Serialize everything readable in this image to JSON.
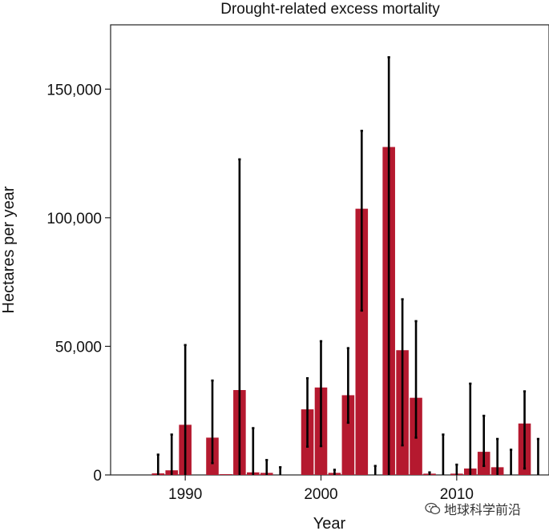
{
  "chart_data": {
    "type": "bar",
    "title": "Drought-related excess mortality",
    "xlabel": "Year",
    "ylabel": "Hectares per year",
    "ylim": [
      0,
      175000
    ],
    "xlim": [
      1984.5,
      2016.8
    ],
    "yticks": [
      0,
      50000,
      100000,
      150000
    ],
    "ytick_labels": [
      "0",
      "50,000",
      "100,000",
      "150,000"
    ],
    "xticks": [
      1990,
      2000,
      2010
    ],
    "xtick_labels": [
      "1990",
      "2000",
      "2010"
    ],
    "years": [
      1987,
      1988,
      1989,
      1990,
      1991,
      1992,
      1993,
      1994,
      1995,
      1996,
      1997,
      1998,
      1999,
      2000,
      2001,
      2002,
      2003,
      2004,
      2005,
      2006,
      2007,
      2008,
      2009,
      2010,
      2011,
      2012,
      2013,
      2014,
      2015
    ],
    "values": [
      0,
      600,
      1800,
      19500,
      0,
      14500,
      300,
      33000,
      1000,
      800,
      0,
      0,
      25500,
      34000,
      800,
      31000,
      103500,
      0,
      127500,
      48500,
      30000,
      500,
      0,
      500,
      2500,
      9000,
      3000,
      0,
      20000
    ],
    "error_upper": [
      0,
      7900,
      15700,
      50500,
      0,
      36700,
      0,
      122700,
      18200,
      5800,
      3000,
      0,
      37600,
      52000,
      2000,
      49300,
      133800,
      3500,
      162400,
      68300,
      59800,
      1000,
      15700,
      4000,
      35500,
      23000,
      14000,
      9800,
      32500
    ],
    "error_lower": [
      0,
      0,
      0,
      0,
      0,
      4600,
      0,
      0,
      0,
      0,
      0,
      0,
      11000,
      11200,
      0,
      20300,
      63900,
      0,
      0,
      11500,
      14500,
      0,
      0,
      0,
      0,
      3500,
      0,
      0,
      2500
    ],
    "extra_error_bar": {
      "year": 2016,
      "upper": 14000,
      "lower": 0
    },
    "bar_color": "#b5192f",
    "error_color": "#000000"
  },
  "watermark": {
    "text": "地球科学前沿",
    "icon": "wechat-icon"
  }
}
